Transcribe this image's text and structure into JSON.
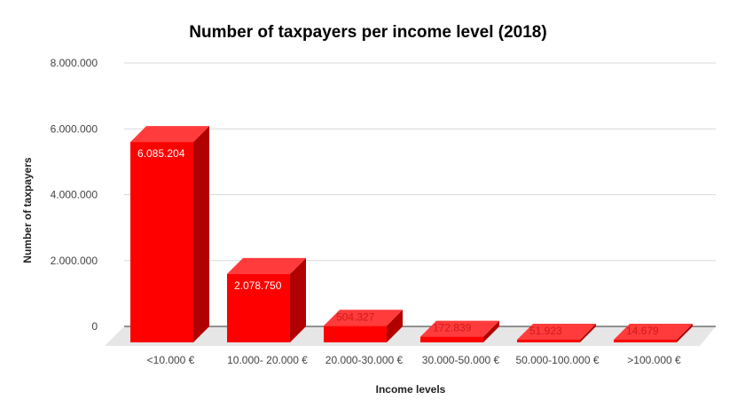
{
  "chart_data": {
    "type": "bar",
    "title": "Number of taxpayers per income level (2018)",
    "xlabel": "Income levels",
    "ylabel": "Number of taxpayers",
    "categories": [
      "<10.000 €",
      "10.000- 20.000 €",
      "20.000-30.000 €",
      "30.000-50.000 €",
      "50.000-100.000 €",
      ">100.000 €"
    ],
    "values": [
      6085204,
      2078750,
      504327,
      172839,
      51923,
      14679
    ],
    "data_labels": [
      "6.085.204",
      "2.078.750",
      "504.327",
      "172.839",
      "51.923",
      "14.679"
    ],
    "y_ticks": [
      0,
      2000000,
      4000000,
      6000000,
      8000000
    ],
    "y_tick_labels": [
      "0",
      "2.000.000",
      "4.000.000",
      "6.000.000",
      "8.000.000"
    ],
    "ylim": [
      0,
      8000000
    ],
    "grid": true,
    "legend": "none",
    "style": "3d",
    "colors": {
      "bar_front": "#ff0000",
      "bar_top": "#ff3b3b",
      "bar_side": "#b00000",
      "gridline": "#d9d9d9",
      "floor": "#e6e6e6",
      "label_inside": "#ffffff",
      "label_above": "#d11a1a"
    }
  }
}
